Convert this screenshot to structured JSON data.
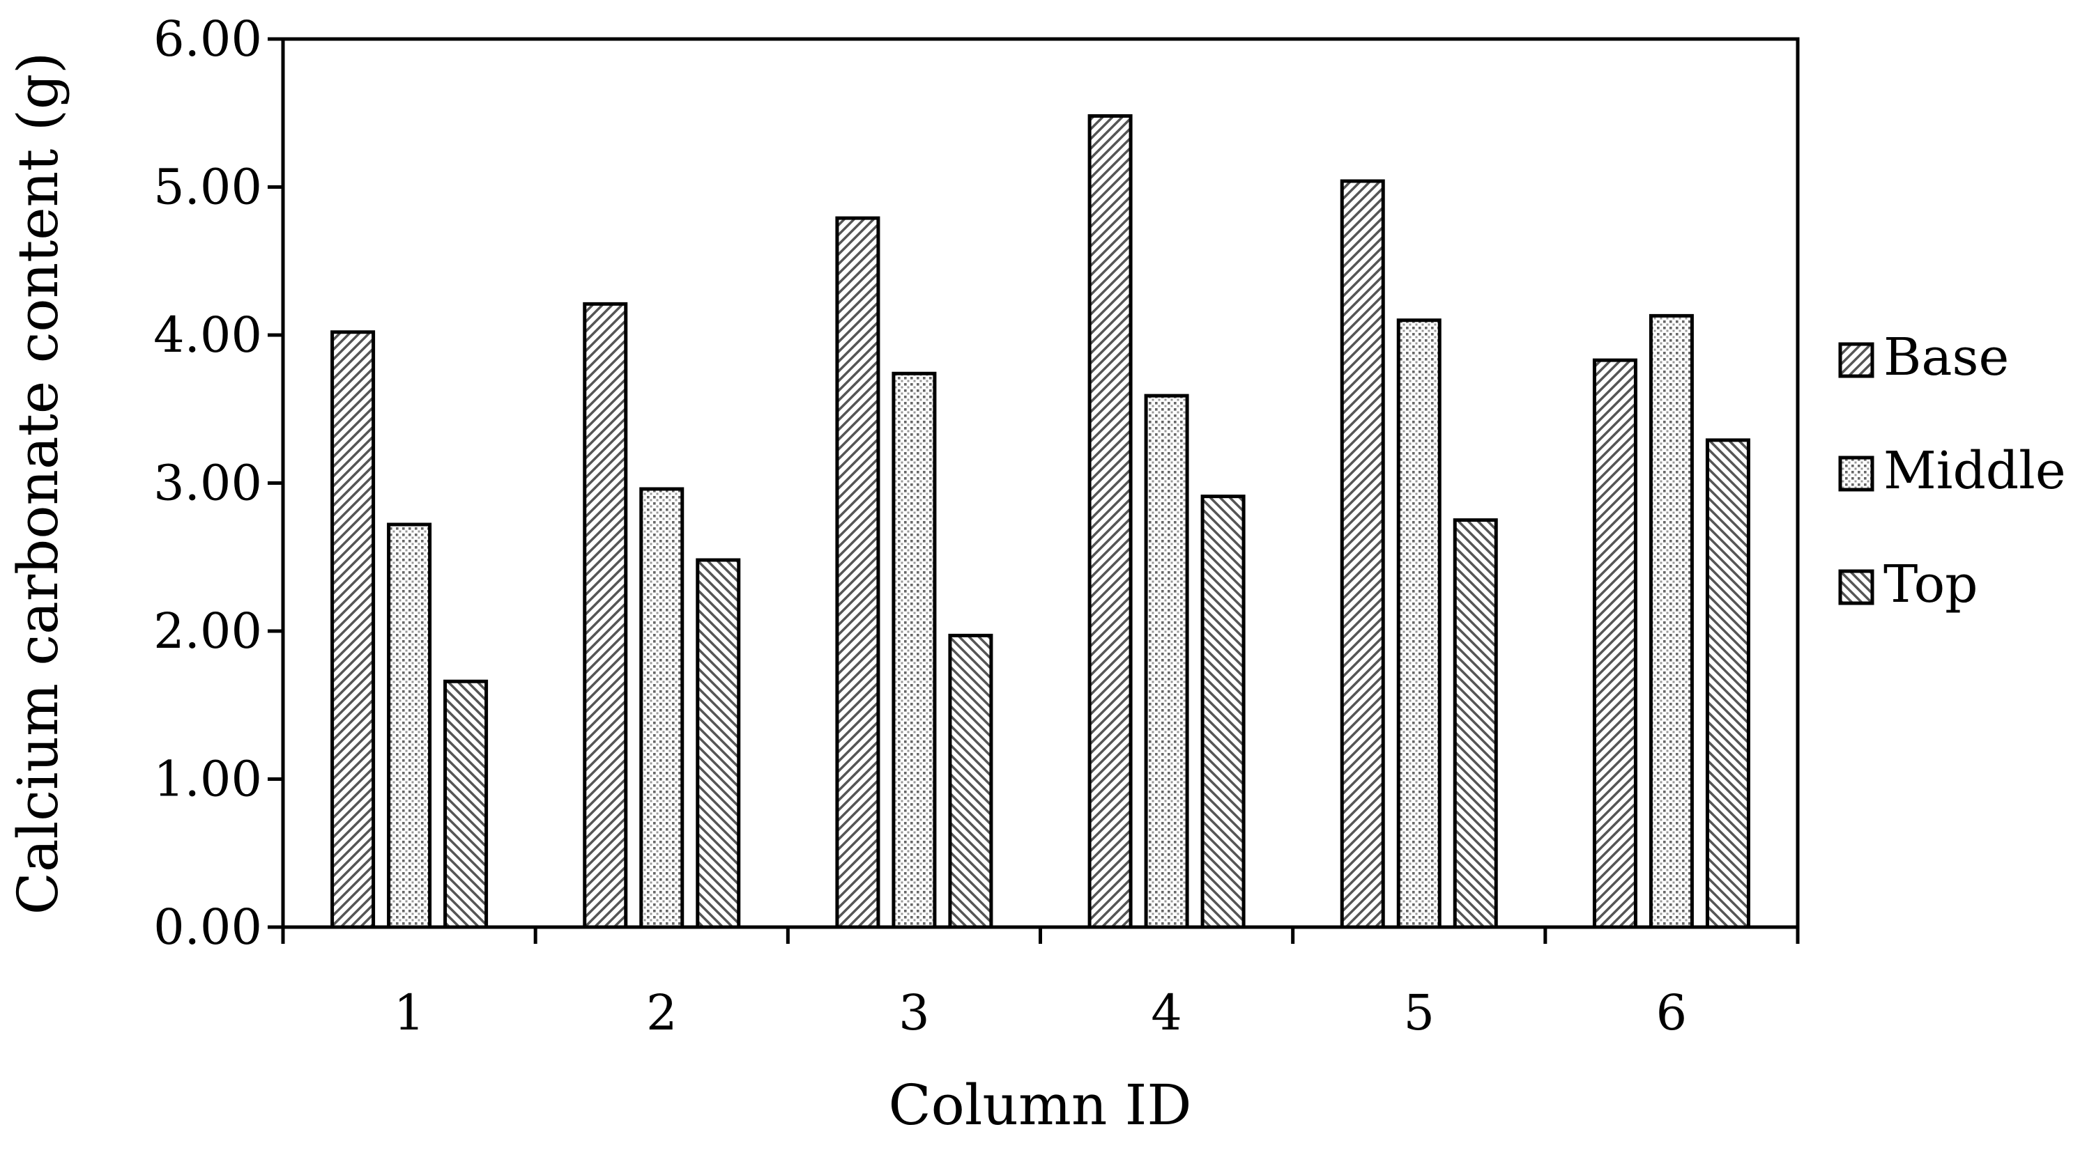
{
  "chart_data": {
    "type": "bar",
    "categories": [
      "1",
      "2",
      "3",
      "4",
      "5",
      "6"
    ],
    "series": [
      {
        "name": "Base",
        "pattern": "diagonal-forward",
        "values": [
          4.02,
          4.21,
          4.79,
          5.48,
          5.04,
          3.83
        ]
      },
      {
        "name": "Middle",
        "pattern": "dots",
        "values": [
          2.72,
          2.96,
          3.74,
          3.59,
          4.1,
          4.13
        ]
      },
      {
        "name": "Top",
        "pattern": "diagonal-back",
        "values": [
          1.66,
          2.48,
          1.97,
          2.91,
          2.75,
          3.29
        ]
      }
    ],
    "xlabel": "Column ID",
    "ylabel": "Calcium carbonate content (g)",
    "ylim": [
      0,
      6
    ],
    "yticks": [
      "0.00",
      "1.00",
      "2.00",
      "3.00",
      "4.00",
      "5.00",
      "6.00"
    ],
    "grid": false,
    "legend_position": "right",
    "colors": {
      "bar_stroke": "#000000",
      "pattern_ink": "#555555",
      "background": "#ffffff"
    }
  }
}
